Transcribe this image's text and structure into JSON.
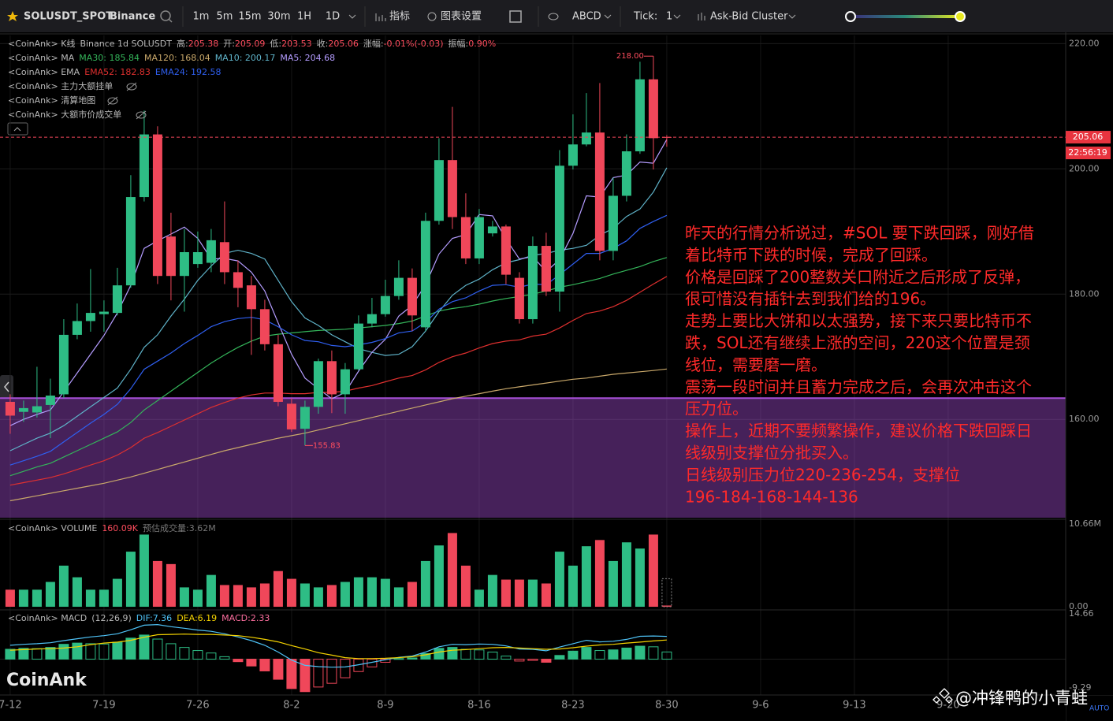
{
  "toolbar": {
    "symbol": "SOLUSDT_SPOT",
    "exchange": "Binance",
    "intervals": [
      "1m",
      "5m",
      "15m",
      "30m",
      "1H",
      "1D"
    ],
    "active_interval": "1D",
    "indicators": "指标",
    "chart_settings": "图表设置",
    "drawing": "ABCD",
    "tick_label": "Tick:",
    "tick_value": 1,
    "cluster": "Ask-Bid Cluster"
  },
  "chart_data": {
    "type": "candlestick",
    "legend_kline": [
      {
        "text": "<CoinAnk> K线",
        "color": "#b8b8b8"
      },
      {
        "text": "Binance 1d SOLUSDT",
        "color": "#b8b8b8"
      },
      {
        "text": "高:",
        "color": "#b8b8b8"
      },
      {
        "text": 205.38,
        "color": "#ff4d5e"
      },
      {
        "text": "开:",
        "color": "#b8b8b8"
      },
      {
        "text": 205.09,
        "color": "#ff4d5e"
      },
      {
        "text": "低:",
        "color": "#b8b8b8"
      },
      {
        "text": 203.53,
        "color": "#ff4d5e"
      },
      {
        "text": "收:",
        "color": "#b8b8b8"
      },
      {
        "text": 205.06,
        "color": "#ff4d5e"
      },
      {
        "text": "涨幅:",
        "color": "#b8b8b8"
      },
      {
        "text": "-0.01%(-0.03)",
        "color": "#ff4d5e"
      },
      {
        "text": "振幅:",
        "color": "#b8b8b8"
      },
      {
        "text": "0.90%",
        "color": "#ff4d5e"
      }
    ],
    "ma": {
      "prefix": "<CoinAnk> MA",
      "series": [
        {
          "label": "MA30: 185.84",
          "color": "#34b55a",
          "values": [
            151,
            151.7,
            152.4,
            153,
            154,
            155,
            156,
            157,
            158,
            159.5,
            161.5,
            163,
            164.5,
            166,
            167.5,
            169,
            170.3,
            171.5,
            172.5,
            173.3,
            173.6,
            173.8,
            174,
            174.2,
            174.3,
            174.4,
            174.6,
            174.8,
            175,
            175.3,
            175.7,
            176.5,
            177.3,
            177.7,
            178,
            178.4,
            178.9,
            179.3,
            179.6,
            180,
            180.5,
            181.1,
            181.5,
            182,
            182.5,
            183.2,
            183.8,
            184.4,
            185.2,
            185.84
          ]
        },
        {
          "label": "MA120: 168.04",
          "color": "#c9a86a",
          "values": [
            147,
            147.4,
            147.8,
            148.2,
            148.6,
            149,
            149.4,
            149.8,
            150.3,
            150.8,
            151.4,
            152,
            152.6,
            153.2,
            153.8,
            154.4,
            155,
            155.5,
            156,
            156.5,
            157,
            157.4,
            157.8,
            158.3,
            158.8,
            159.3,
            159.8,
            160.3,
            160.8,
            161.3,
            161.8,
            162.3,
            162.8,
            163.3,
            163.7,
            164.1,
            164.5,
            164.9,
            165.2,
            165.5,
            165.8,
            166.1,
            166.4,
            166.6,
            166.9,
            167.2,
            167.4,
            167.6,
            167.8,
            168.04
          ]
        },
        {
          "label": "MA10: 200.17",
          "color": "#5fb3c9",
          "values": [
            155,
            156,
            157,
            157.8,
            159,
            160.5,
            162,
            163.5,
            165,
            168,
            171.5,
            173.5,
            176.5,
            179.2,
            182.2,
            184.5,
            186.5,
            187,
            186.5,
            185.6,
            182.2,
            178.8,
            176.2,
            175,
            173.5,
            172.4,
            171.3,
            170.7,
            170.2,
            170.4,
            171.6,
            174.1,
            177.2,
            179.8,
            181.4,
            182.4,
            183.9,
            185,
            185.5,
            186.2,
            186.5,
            187,
            187.3,
            187.8,
            189.4,
            190.5,
            192.4,
            193.6,
            196.3,
            200.17
          ]
        },
        {
          "label": "MA5: 204.68",
          "color": "#b49cff",
          "values": [
            159,
            160,
            160.8,
            161.5,
            164.4,
            167.4,
            170.4,
            173.4,
            177,
            181.4,
            187.3,
            188.5,
            189.6,
            190.7,
            188.9,
            185.6,
            185.7,
            185.3,
            183.5,
            180.5,
            175.4,
            170.4,
            166.6,
            164.9,
            163.3,
            164.3,
            167.7,
            170.7,
            172.8,
            176.5,
            178.2,
            181.5,
            186.4,
            188.9,
            189.5,
            192.7,
            192.5,
            188.8,
            185.6,
            186,
            183.6,
            185.5,
            189.7,
            195.7,
            195.5,
            198.6,
            199,
            201.1,
            200.9,
            204.68
          ]
        }
      ]
    },
    "ema": {
      "prefix": "<CoinAnk> EMA",
      "series": [
        {
          "label": "EMA52: 182.83",
          "color": "#e0302f",
          "values": [
            149.5,
            149.9,
            150.3,
            150.7,
            151.3,
            152,
            152.7,
            153.4,
            154.3,
            155.5,
            157,
            157.9,
            158.9,
            159.9,
            160.9,
            161.9,
            162.7,
            163.4,
            163.9,
            164.2,
            164.2,
            164.1,
            164.1,
            164.3,
            164.3,
            164.5,
            165,
            165.4,
            166,
            166.6,
            167,
            167.9,
            169.1,
            170,
            170.6,
            171.4,
            172.1,
            172.5,
            172.7,
            173.3,
            173.6,
            174.6,
            175.8,
            176.9,
            177.3,
            178,
            179,
            180.3,
            181.6,
            182.83
          ]
        },
        {
          "label": "EMA24: 192.58",
          "color": "#2f5ff0",
          "values": [
            152.7,
            153.4,
            154.1,
            154.9,
            156.4,
            157.9,
            159.4,
            160.8,
            162.4,
            164.9,
            168,
            169.3,
            170.6,
            172.1,
            173.4,
            174.8,
            175.6,
            176.1,
            176.3,
            175.9,
            174.8,
            173.5,
            172.6,
            172.4,
            171.8,
            171.6,
            171.9,
            172.3,
            172.9,
            173.8,
            174.1,
            175.5,
            177.6,
            178.8,
            179.4,
            180.5,
            181.4,
            181.5,
            181.1,
            181.6,
            181.5,
            183.1,
            184.8,
            186.5,
            186.5,
            187.3,
            188.5,
            190.5,
            191.6,
            192.58
          ]
        }
      ]
    },
    "hidden_indicators": [
      "<CoinAnk> 主力大额挂单",
      "<CoinAnk> 清算地图",
      "<CoinAnk> 大额市价成交单"
    ],
    "candles": {
      "up_color": "#2ebd85",
      "down_color": "#f0475a",
      "open": [
        162.8,
        161.2,
        161.1,
        162.3,
        164,
        173.5,
        175.7,
        176.8,
        177,
        181.4,
        195.5,
        205.5,
        189.2,
        182.9,
        184.8,
        185,
        188.3,
        183.5,
        181.4,
        177.6,
        172,
        162.5,
        158.5,
        162,
        169.3,
        164,
        168,
        175.3,
        176.8,
        179.7,
        182.6,
        174.7,
        191.7,
        201.4,
        192.3,
        185.7,
        189.7,
        190.8,
        182.6,
        176,
        187.7,
        180.4,
        200.5,
        203.9,
        205.8,
        186.9,
        195.7,
        202.8,
        214.3,
        205.09
      ],
      "high": [
        164,
        163,
        168.4,
        166.5,
        176,
        178.5,
        184,
        179,
        184.2,
        199,
        209.3,
        206.8,
        193,
        190.4,
        190,
        190.4,
        194.8,
        185.4,
        182.9,
        179.1,
        173.5,
        163.4,
        163,
        169.7,
        171,
        169,
        176.6,
        179.4,
        182.3,
        185.4,
        184.1,
        193,
        204.9,
        209.9,
        196.1,
        193.6,
        191.7,
        191.1,
        183.5,
        189.2,
        189.8,
        203,
        208.7,
        212.1,
        213.7,
        198.6,
        205.5,
        217.1,
        218,
        205.38
      ],
      "low": [
        157.7,
        159.6,
        160.3,
        157,
        163.4,
        172.8,
        174,
        174,
        176.6,
        181,
        194.8,
        181.6,
        179,
        177.2,
        184.2,
        183.5,
        181.6,
        177.9,
        170.3,
        171,
        162.1,
        158,
        155.83,
        160.9,
        161,
        160.9,
        167.8,
        174.7,
        176.4,
        179.1,
        174.1,
        174.1,
        191.1,
        190.4,
        184.8,
        184.8,
        189.2,
        181.6,
        175.3,
        175.3,
        179.7,
        177.2,
        199.9,
        203.6,
        185.4,
        185.4,
        194.8,
        202.4,
        199.9,
        203.53
      ],
      "close": [
        160.6,
        161.8,
        162.1,
        163.8,
        173.5,
        175.7,
        177,
        177.2,
        181.4,
        195.5,
        205.5,
        182.9,
        182.9,
        186.7,
        186.7,
        188.6,
        183.5,
        181,
        177.6,
        172,
        162.8,
        158.4,
        162,
        169.3,
        164,
        168,
        175.3,
        176.8,
        179.7,
        182.6,
        176.6,
        191.7,
        201.4,
        192.3,
        185.7,
        192.3,
        190.8,
        183.1,
        176,
        187.7,
        180.4,
        200.5,
        203.9,
        205.8,
        186.9,
        195.7,
        202.8,
        214.3,
        204.9,
        205.06
      ]
    },
    "high_label": {
      "value": 218,
      "label": "218.00",
      "index": 48
    },
    "low_label": {
      "value": 155.83,
      "label": "155.83",
      "index": 22
    },
    "countdown": "22:56:19",
    "zone": {
      "level": 163.4,
      "color": "#a64fd6"
    },
    "xlim": [
      -0.76,
      78.77
    ],
    "xticks": [
      {
        "value": 0,
        "label": "7-12"
      },
      {
        "value": 7,
        "label": "7-19"
      },
      {
        "value": 14,
        "label": "7-26"
      },
      {
        "value": 21,
        "label": "8-2"
      },
      {
        "value": 28,
        "label": "8-9"
      },
      {
        "value": 35,
        "label": "8-16"
      },
      {
        "value": 42,
        "label": "8-23"
      },
      {
        "value": 49,
        "label": "8-30"
      },
      {
        "value": 56,
        "label": "9-6"
      },
      {
        "value": 63,
        "label": "9-13"
      },
      {
        "value": 70,
        "label": "9-20"
      }
    ],
    "ylim": [
      144.3,
      221.3
    ],
    "yticks": [
      {
        "value": 160,
        "label": "160.00"
      },
      {
        "value": 180,
        "label": "180.00"
      },
      {
        "value": 200,
        "label": "200.00"
      },
      {
        "value": 220,
        "label": "220.00"
      }
    ],
    "grid": true,
    "annotation": [
      "昨天的行情分析说过，#SOL 要下跌回踩，刚好借",
      "着比特币下跌的时候，完成了回踩。",
      "价格是回踩了200整数关口附近之后形成了反弹，",
      "很可惜没有插针去到我们给的196。",
      "走势上要比大饼和以太强势，接下来只要比特币不",
      "跌，SOL还有继续上涨的空间，220这个位置是颈",
      "线位，需要磨一磨。",
      "震荡一段时间并且蓄力完成之后，会再次冲击这个",
      "压力位。",
      "操作上，近期不要频繁操作，建议价格下跌回踩日",
      "线级别支撑位分批买入。",
      "日线级别压力位220-236-254，支撑位",
      "196-184-168-144-136"
    ],
    "volume": {
      "prefix": "<CoinAnk> VOLUME",
      "values": [
        2.2,
        2.2,
        2.2,
        3.2,
        5.3,
        3.8,
        2.2,
        2.2,
        3.6,
        7.1,
        9.3,
        5.9,
        5.5,
        2.5,
        2.2,
        4.1,
        2.8,
        2.8,
        2.5,
        3,
        4.6,
        3.6,
        3,
        2.5,
        2.8,
        3.2,
        3.8,
        3.8,
        3.6,
        2.5,
        3.2,
        5.9,
        7.9,
        9.5,
        5.3,
        2.2,
        4.1,
        3.5,
        3.5,
        3.5,
        3,
        7.1,
        5.3,
        7.8,
        8.6,
        5.9,
        8.3,
        7.5,
        9.3,
        0.16009
      ],
      "value_labels": [
        null,
        null,
        null,
        null,
        null,
        null,
        null,
        null,
        null,
        null,
        null,
        null,
        null,
        null,
        null,
        null,
        null,
        null,
        null,
        null,
        null,
        null,
        null,
        null,
        null,
        null,
        null,
        null,
        null,
        null,
        null,
        null,
        null,
        null,
        null,
        null,
        null,
        null,
        null,
        null,
        null,
        null,
        null,
        null,
        null,
        null,
        null,
        null,
        null,
        "160.09K"
      ],
      "estimate": 3.62,
      "estimate_label": "预估成交量:3.62M",
      "ylim": [
        -0.2,
        11.17
      ],
      "yticks": [
        {
          "value": 0,
          "label": "0.00"
        },
        {
          "value": 10.66,
          "label": "10.66M"
        }
      ]
    },
    "macd": {
      "prefix": "<CoinAnk> MACD",
      "params": "(12,26,9)",
      "dif_label": "DIF:7.36",
      "dea_label": "DEA:6.19",
      "hist_label": "MACD:2.33",
      "dif_color": "#4fc3f7",
      "dea_color": "#f5d300",
      "hist_color": "#ff6fa0",
      "hist": [
        3.2,
        3.5,
        3.4,
        3.8,
        4.8,
        5.2,
        5,
        4.9,
        5.5,
        6.8,
        7.8,
        6.5,
        5,
        3.8,
        2.8,
        2,
        0.8,
        -0.8,
        -2.2,
        -3.8,
        -6.5,
        -9.5,
        -10.5,
        -9,
        -7.8,
        -6,
        -4,
        -2.5,
        -1,
        0.2,
        0.4,
        1.8,
        3.5,
        3.8,
        3.2,
        3,
        2.3,
        1,
        -0.6,
        -0.4,
        -1,
        1.2,
        2.6,
        3.8,
        2.8,
        3,
        3.6,
        4.2,
        4,
        2.33
      ],
      "dif": [
        4.5,
        4.8,
        5,
        5.3,
        6,
        6.6,
        7.2,
        7.6,
        8.2,
        9.5,
        11,
        11.2,
        10.5,
        10,
        9.4,
        9,
        8.2,
        7.2,
        6,
        4.5,
        2.3,
        -0.3,
        -2,
        -2.4,
        -2.6,
        -2.5,
        -1.8,
        -1,
        -0.2,
        0.6,
        1,
        2.3,
        4,
        4.8,
        4.7,
        4.9,
        4.8,
        4.3,
        3.3,
        3.2,
        2.7,
        3.9,
        5,
        6.1,
        5.6,
        5.8,
        6.4,
        7.4,
        7.5,
        7.36
      ],
      "dea": [
        2.9,
        3.1,
        3.3,
        3.4,
        3.6,
        4,
        4.7,
        5.2,
        5.5,
        6.1,
        7.1,
        7.9,
        8,
        8.1,
        8,
        8,
        7.8,
        7.6,
        7.1,
        6.4,
        5.6,
        4.4,
        3.3,
        2.1,
        1.3,
        0.5,
        0.2,
        0.2,
        0.3,
        0.5,
        0.8,
        1.4,
        2.3,
        2.9,
        3.1,
        3.4,
        3.7,
        3.8,
        3.6,
        3.4,
        3.2,
        3.3,
        3.7,
        4.2,
        4.6,
        4.8,
        5.2,
        5.5,
        5.9,
        6.19
      ],
      "ylim": [
        -11.58,
        15.42
      ],
      "yticks": [
        14.66,
        -9.29
      ]
    }
  },
  "watermark": "CoinAnk",
  "credit": "@冲锋鸭的小青蛙",
  "auto_label": "AUTO"
}
